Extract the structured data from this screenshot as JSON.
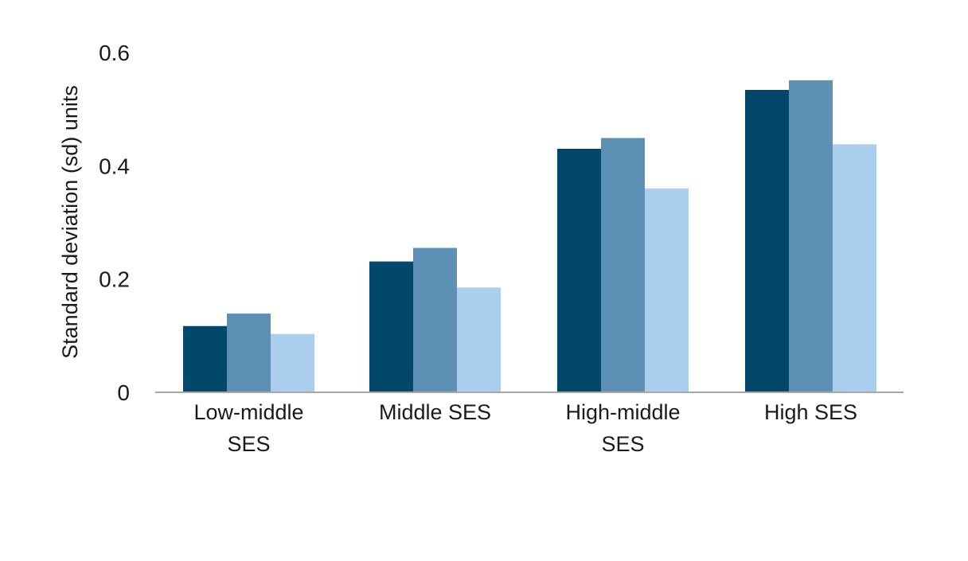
{
  "chart_data": {
    "type": "bar",
    "ylabel": "Standard deviation (sd) units",
    "ylim": [
      0,
      0.6
    ],
    "yticks": [
      "0",
      "0.2",
      "0.4",
      "0.6"
    ],
    "ytick_values": [
      0,
      0.2,
      0.4,
      0.6
    ],
    "categories": [
      [
        "Low-middle",
        "SES"
      ],
      [
        "Middle SES"
      ],
      [
        "High-middle",
        "SES"
      ],
      [
        "High SES"
      ]
    ],
    "series": [
      {
        "values": [
          0.117,
          0.231,
          0.43,
          0.534
        ],
        "color": "#03476a"
      },
      {
        "values": [
          0.139,
          0.255,
          0.449,
          0.551
        ],
        "color": "#5d90b5"
      },
      {
        "values": [
          0.103,
          0.185,
          0.36,
          0.438
        ],
        "color": "#abcdee"
      }
    ],
    "grid": false,
    "legend": "none",
    "axis_color": "#a6a6a6"
  }
}
